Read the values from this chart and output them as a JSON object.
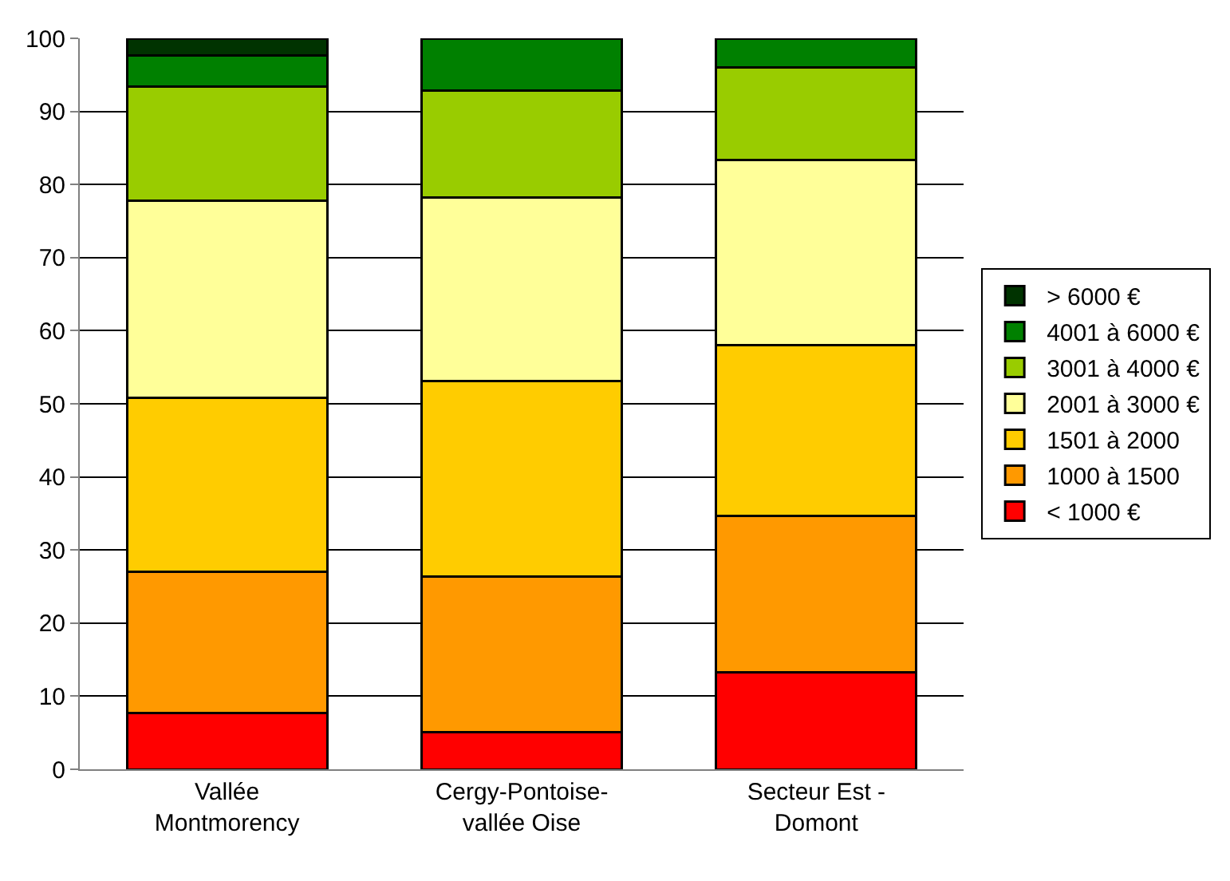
{
  "chart_data": {
    "type": "bar",
    "stacked": true,
    "categories": [
      "Vallée\nMontmorency",
      "Cergy-Pontoise-\nvallée Oise",
      "Secteur Est -\nDomont"
    ],
    "ylim": [
      0,
      100
    ],
    "yticks": [
      0,
      10,
      20,
      30,
      40,
      50,
      60,
      70,
      80,
      90,
      100
    ],
    "grid": "y",
    "legend": "right",
    "series": [
      {
        "name": "< 1000 €",
        "color": "#ff0000",
        "values": [
          7.7,
          5.1,
          13.3
        ]
      },
      {
        "name": "1000 à 1500",
        "color": "#ff9900",
        "values": [
          19.3,
          21.3,
          21.4
        ]
      },
      {
        "name": "1501 à 2000",
        "color": "#ffcc00",
        "values": [
          23.8,
          26.7,
          23.3
        ]
      },
      {
        "name": "2001 à 3000 €",
        "color": "#ffff99",
        "values": [
          27.0,
          25.1,
          25.4
        ]
      },
      {
        "name": "3001 à 4000 €",
        "color": "#99cc00",
        "values": [
          15.6,
          14.7,
          12.6
        ]
      },
      {
        "name": "4001 à 6000 €",
        "color": "#008000",
        "values": [
          4.2,
          7.1,
          4.0
        ]
      },
      {
        "name": "> 6000 €",
        "color": "#003300",
        "values": [
          2.4,
          null,
          null
        ]
      }
    ]
  }
}
